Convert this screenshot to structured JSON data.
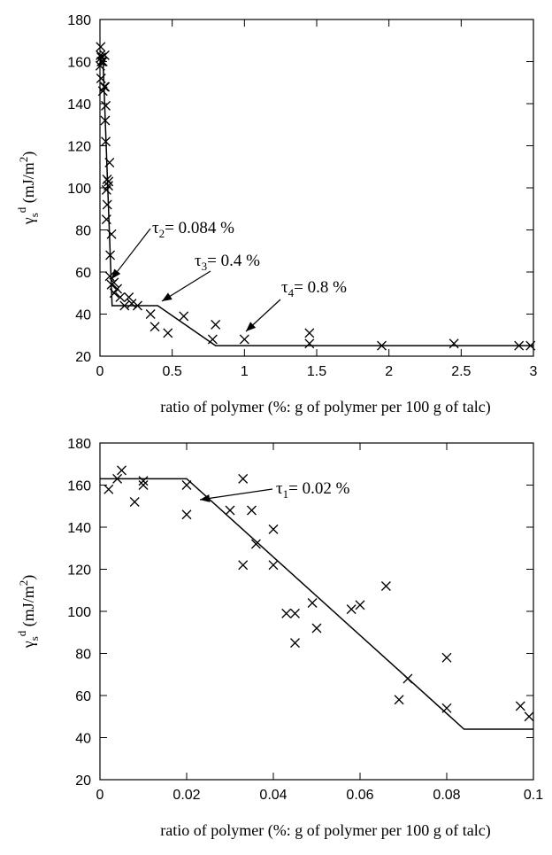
{
  "chart_data": [
    {
      "type": "scatter",
      "xlabel": "ratio of polymer (%: g of polymer per 100 g of talc)",
      "ylabel": {
        "base": "γ",
        "sup": "d",
        "sub": "s",
        "unit": " (mJ/m",
        "unit_sup": "2",
        "unit_end": ")"
      },
      "xlim": [
        0,
        3
      ],
      "ylim": [
        20,
        180
      ],
      "xticks": [
        "0",
        "0.5",
        "1",
        "1.5",
        "2",
        "2.5",
        "3"
      ],
      "yticks": [
        "20",
        "40",
        "60",
        "80",
        "100",
        "120",
        "140",
        "160",
        "180"
      ],
      "points": [
        [
          0.002,
          158
        ],
        [
          0.004,
          163
        ],
        [
          0.005,
          167
        ],
        [
          0.008,
          152
        ],
        [
          0.01,
          162
        ],
        [
          0.01,
          160
        ],
        [
          0.02,
          146
        ],
        [
          0.02,
          160
        ],
        [
          0.03,
          148
        ],
        [
          0.033,
          163
        ],
        [
          0.035,
          148
        ],
        [
          0.036,
          132
        ],
        [
          0.04,
          139
        ],
        [
          0.04,
          122
        ],
        [
          0.045,
          99
        ],
        [
          0.045,
          85
        ],
        [
          0.049,
          104
        ],
        [
          0.05,
          92
        ],
        [
          0.058,
          101
        ],
        [
          0.06,
          103
        ],
        [
          0.066,
          112
        ],
        [
          0.068,
          58
        ],
        [
          0.071,
          68
        ],
        [
          0.08,
          78
        ],
        [
          0.08,
          54
        ],
        [
          0.097,
          55
        ],
        [
          0.099,
          50
        ],
        [
          0.12,
          52
        ],
        [
          0.14,
          48
        ],
        [
          0.17,
          44
        ],
        [
          0.2,
          48
        ],
        [
          0.22,
          45
        ],
        [
          0.26,
          44
        ],
        [
          0.35,
          40
        ],
        [
          0.38,
          34
        ],
        [
          0.47,
          31
        ],
        [
          0.58,
          39
        ],
        [
          0.78,
          28
        ],
        [
          0.8,
          35
        ],
        [
          1.0,
          28
        ],
        [
          1.45,
          31
        ],
        [
          1.45,
          26
        ],
        [
          1.95,
          25
        ],
        [
          2.45,
          26
        ],
        [
          2.9,
          25
        ],
        [
          2.98,
          25
        ]
      ],
      "fit_line": [
        [
          0,
          163
        ],
        [
          0.02,
          163
        ],
        [
          0.084,
          44
        ],
        [
          0.4,
          44
        ],
        [
          0.8,
          25
        ],
        [
          3,
          25
        ]
      ],
      "annotations": [
        {
          "symbol": "τ",
          "sub": "2",
          "text": "= 0.084 %",
          "target": [
            0.09,
            48
          ]
        },
        {
          "symbol": "τ",
          "sub": "3",
          "text": "= 0.4 %",
          "target": [
            0.4,
            44
          ]
        },
        {
          "symbol": "τ",
          "sub": "4",
          "text": "= 0.8 %",
          "target": [
            0.82,
            27
          ]
        }
      ]
    },
    {
      "type": "scatter",
      "xlabel": "ratio of polymer (%: g of polymer per 100 g of talc)",
      "ylabel": {
        "base": "γ",
        "sup": "d",
        "sub": "s",
        "unit": " (mJ/m",
        "unit_sup": "2",
        "unit_end": ")"
      },
      "xlim": [
        0,
        0.1
      ],
      "ylim": [
        20,
        180
      ],
      "xticks": [
        "0",
        "0.02",
        "0.04",
        "0.06",
        "0.08",
        "0.1"
      ],
      "yticks": [
        "20",
        "40",
        "60",
        "80",
        "100",
        "120",
        "140",
        "160",
        "180"
      ],
      "points": [
        [
          0.002,
          158
        ],
        [
          0.004,
          163
        ],
        [
          0.005,
          167
        ],
        [
          0.008,
          152
        ],
        [
          0.01,
          162
        ],
        [
          0.01,
          160
        ],
        [
          0.02,
          146
        ],
        [
          0.02,
          160
        ],
        [
          0.03,
          148
        ],
        [
          0.033,
          163
        ],
        [
          0.033,
          122
        ],
        [
          0.035,
          148
        ],
        [
          0.036,
          132
        ],
        [
          0.04,
          139
        ],
        [
          0.04,
          122
        ],
        [
          0.043,
          99
        ],
        [
          0.045,
          99
        ],
        [
          0.045,
          85
        ],
        [
          0.049,
          104
        ],
        [
          0.05,
          92
        ],
        [
          0.058,
          101
        ],
        [
          0.06,
          103
        ],
        [
          0.066,
          112
        ],
        [
          0.069,
          58
        ],
        [
          0.071,
          68
        ],
        [
          0.08,
          78
        ],
        [
          0.08,
          54
        ],
        [
          0.097,
          55
        ],
        [
          0.099,
          50
        ]
      ],
      "fit_line": [
        [
          0,
          163
        ],
        [
          0.02,
          163
        ],
        [
          0.084,
          44
        ],
        [
          0.1,
          44
        ]
      ],
      "annotations": [
        {
          "symbol": "τ",
          "sub": "1",
          "text": "= 0.02 %",
          "target": [
            0.022,
            164
          ]
        }
      ]
    }
  ]
}
